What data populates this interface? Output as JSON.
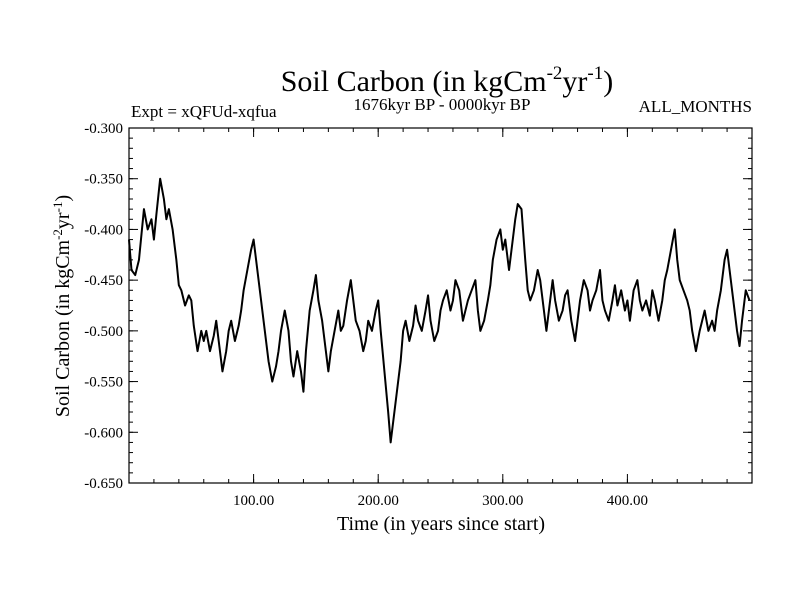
{
  "chart_data": {
    "type": "line",
    "title": "Soil Carbon (in kgCm",
    "title_sup1": "-2",
    "title_mid": "yr",
    "title_sup2": "-1",
    "title_end": ")",
    "left_note": "Expt = xQFUd-xqfua",
    "center_note": "1676kyr BP - 0000kyr BP",
    "right_note": "ALL_MONTHS",
    "xlabel": "Time (in years since start)",
    "ylabel_main": "Soil Carbon (in kgCm",
    "ylabel_sup1": "-2",
    "ylabel_mid": "yr",
    "ylabel_sup2": "-1",
    "ylabel_end": ")",
    "xlim": [
      0,
      500
    ],
    "ylim": [
      -0.65,
      -0.3
    ],
    "xticks": [
      {
        "value": 100,
        "label": "100.00"
      },
      {
        "value": 200,
        "label": "200.00"
      },
      {
        "value": 300,
        "label": "300.00"
      },
      {
        "value": 400,
        "label": "400.00"
      }
    ],
    "yticks": [
      {
        "value": -0.3,
        "label": "-0.300"
      },
      {
        "value": -0.35,
        "label": "-0.350"
      },
      {
        "value": -0.4,
        "label": "-0.400"
      },
      {
        "value": -0.45,
        "label": "-0.450"
      },
      {
        "value": -0.5,
        "label": "-0.500"
      },
      {
        "value": -0.55,
        "label": "-0.550"
      },
      {
        "value": -0.6,
        "label": "-0.600"
      },
      {
        "value": -0.65,
        "label": "-0.650"
      }
    ],
    "grid": false,
    "line_color": "#000000",
    "series": [
      {
        "x": [
          0,
          2,
          5,
          8,
          10,
          12,
          15,
          18,
          20,
          22,
          25,
          28,
          30,
          32,
          35,
          38,
          40,
          42,
          45,
          48,
          50,
          52,
          55,
          58,
          60,
          62,
          65,
          68,
          70,
          72,
          75,
          78,
          80,
          82,
          85,
          88,
          90,
          92,
          95,
          98,
          100,
          102,
          105,
          108,
          110,
          112,
          115,
          118,
          120,
          122,
          125,
          128,
          130,
          132,
          135,
          138,
          140,
          142,
          145,
          148,
          150,
          152,
          155,
          158,
          160,
          162,
          165,
          168,
          170,
          172,
          175,
          178,
          180,
          182,
          185,
          188,
          190,
          192,
          195,
          198,
          200,
          202,
          205,
          208,
          210,
          212,
          215,
          218,
          220,
          222,
          225,
          228,
          230,
          232,
          235,
          238,
          240,
          242,
          245,
          248,
          250,
          252,
          255,
          258,
          260,
          262,
          265,
          268,
          270,
          272,
          275,
          278,
          280,
          282,
          285,
          288,
          290,
          292,
          295,
          298,
          300,
          302,
          305,
          308,
          310,
          312,
          315,
          318,
          320,
          322,
          325,
          328,
          330,
          332,
          335,
          338,
          340,
          342,
          345,
          348,
          350,
          352,
          355,
          358,
          360,
          362,
          365,
          368,
          370,
          372,
          375,
          378,
          380,
          382,
          385,
          388,
          390,
          392,
          395,
          398,
          400,
          402,
          405,
          408,
          410,
          412,
          415,
          418,
          420,
          422,
          425,
          428,
          430,
          432,
          435,
          438,
          440,
          442,
          445,
          448,
          450,
          452,
          455,
          458,
          460,
          462,
          465,
          468,
          470,
          472,
          475,
          478,
          480,
          482,
          485,
          488,
          490,
          492,
          495,
          498
        ],
        "y": [
          -0.41,
          -0.44,
          -0.445,
          -0.43,
          -0.405,
          -0.38,
          -0.4,
          -0.39,
          -0.41,
          -0.385,
          -0.35,
          -0.37,
          -0.39,
          -0.38,
          -0.4,
          -0.43,
          -0.455,
          -0.46,
          -0.475,
          -0.465,
          -0.47,
          -0.495,
          -0.52,
          -0.5,
          -0.51,
          -0.5,
          -0.52,
          -0.505,
          -0.49,
          -0.51,
          -0.54,
          -0.52,
          -0.5,
          -0.49,
          -0.51,
          -0.495,
          -0.48,
          -0.46,
          -0.44,
          -0.42,
          -0.41,
          -0.43,
          -0.46,
          -0.49,
          -0.51,
          -0.53,
          -0.55,
          -0.535,
          -0.52,
          -0.5,
          -0.48,
          -0.5,
          -0.53,
          -0.545,
          -0.52,
          -0.54,
          -0.56,
          -0.52,
          -0.48,
          -0.46,
          -0.445,
          -0.47,
          -0.49,
          -0.52,
          -0.54,
          -0.52,
          -0.5,
          -0.48,
          -0.5,
          -0.495,
          -0.47,
          -0.45,
          -0.47,
          -0.49,
          -0.5,
          -0.52,
          -0.51,
          -0.49,
          -0.5,
          -0.48,
          -0.47,
          -0.5,
          -0.54,
          -0.58,
          -0.61,
          -0.59,
          -0.56,
          -0.53,
          -0.5,
          -0.49,
          -0.51,
          -0.495,
          -0.475,
          -0.49,
          -0.5,
          -0.48,
          -0.465,
          -0.49,
          -0.51,
          -0.5,
          -0.48,
          -0.47,
          -0.46,
          -0.48,
          -0.47,
          -0.45,
          -0.46,
          -0.49,
          -0.48,
          -0.47,
          -0.46,
          -0.45,
          -0.48,
          -0.5,
          -0.49,
          -0.47,
          -0.455,
          -0.43,
          -0.41,
          -0.4,
          -0.42,
          -0.41,
          -0.44,
          -0.41,
          -0.39,
          -0.375,
          -0.38,
          -0.43,
          -0.46,
          -0.47,
          -0.46,
          -0.44,
          -0.45,
          -0.47,
          -0.5,
          -0.47,
          -0.45,
          -0.47,
          -0.49,
          -0.48,
          -0.465,
          -0.46,
          -0.49,
          -0.51,
          -0.49,
          -0.47,
          -0.45,
          -0.46,
          -0.48,
          -0.47,
          -0.46,
          -0.44,
          -0.47,
          -0.48,
          -0.49,
          -0.47,
          -0.455,
          -0.475,
          -0.46,
          -0.48,
          -0.47,
          -0.49,
          -0.46,
          -0.45,
          -0.47,
          -0.48,
          -0.47,
          -0.485,
          -0.46,
          -0.47,
          -0.49,
          -0.47,
          -0.45,
          -0.44,
          -0.42,
          -0.4,
          -0.43,
          -0.45,
          -0.46,
          -0.47,
          -0.48,
          -0.5,
          -0.52,
          -0.5,
          -0.49,
          -0.48,
          -0.5,
          -0.49,
          -0.5,
          -0.48,
          -0.46,
          -0.43,
          -0.42,
          -0.44,
          -0.47,
          -0.5,
          -0.515,
          -0.49,
          -0.46,
          -0.47
        ]
      }
    ]
  }
}
